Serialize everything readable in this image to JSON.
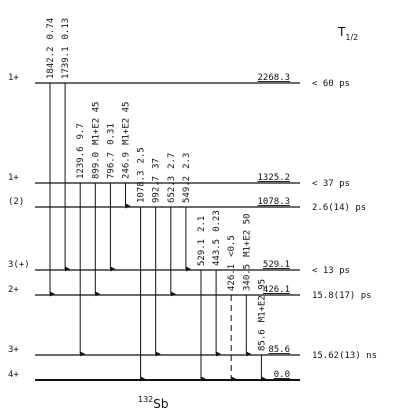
{
  "header": {
    "title": "T",
    "title_sub": "1/2",
    "footer_sup": "132",
    "footer": "Sb"
  },
  "levels": [
    {
      "spin": "1+",
      "energy": "2268.3",
      "halflife": "< 60 ps",
      "transitions": [
        {
          "energy": "1842.2",
          "label": "0.74"
        },
        {
          "energy": "1739.1",
          "label": "0.13"
        }
      ]
    },
    {
      "spin": "1+",
      "energy": "1325.2",
      "halflife": "< 37 ps",
      "transitions": [
        {
          "energy": "1239.6",
          "label": "9.7"
        },
        {
          "energy": "899.0",
          "label": "M1+E2 45"
        },
        {
          "energy": "796.7",
          "label": "0.31"
        },
        {
          "energy": "246.9",
          "label": "M1+E2 45"
        }
      ]
    },
    {
      "spin": "(2)",
      "energy": "1078.3",
      "halflife": "2.6(14) ps",
      "transitions": [
        {
          "energy": "1078.3",
          "label": "2.5"
        },
        {
          "energy": "992.7",
          "label": "37"
        },
        {
          "energy": "652.3",
          "label": "2.7"
        },
        {
          "energy": "549.2",
          "label": "2.3"
        }
      ]
    },
    {
      "spin": "3(+)",
      "energy": "529.1",
      "halflife": "< 13 ps",
      "transitions": [
        {
          "energy": "529.1",
          "label": "2.1"
        },
        {
          "energy": "443.5",
          "label": "0.23"
        }
      ]
    },
    {
      "spin": "2+",
      "energy": "426.1",
      "halflife": "15.8(17) ps",
      "transitions": [
        {
          "energy": "426.1",
          "label": "<0.5",
          "dashed": true
        },
        {
          "energy": "340.5",
          "label": "M1+E2 50"
        }
      ]
    },
    {
      "spin": "3+",
      "energy": "85.6",
      "halflife": "15.62(13) ns",
      "transitions": [
        {
          "energy": "85.6",
          "label": "M1+E2 95"
        }
      ]
    },
    {
      "spin": "4+",
      "energy": "0.0",
      "transitions": []
    }
  ]
}
